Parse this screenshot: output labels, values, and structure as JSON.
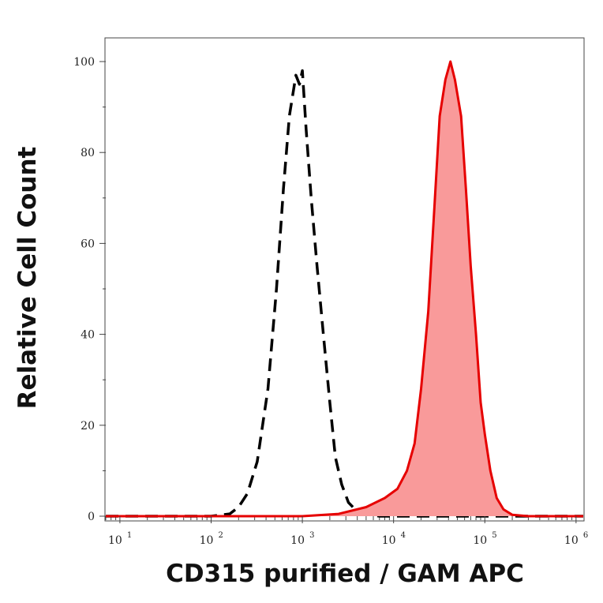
{
  "chart_data": {
    "type": "area",
    "title": "",
    "xlabel": "CD315 purified / GAM APC",
    "ylabel": "Relative Cell Count",
    "x_scale": "log",
    "xlim": [
      7,
      1200000
    ],
    "ylim": [
      0,
      100
    ],
    "grid": false,
    "x_ticks": [
      {
        "base": "10",
        "exp": "1",
        "value": 10
      },
      {
        "base": "10",
        "exp": "2",
        "value": 100
      },
      {
        "base": "10",
        "exp": "3",
        "value": 1000
      },
      {
        "base": "10",
        "exp": "4",
        "value": 10000
      },
      {
        "base": "10",
        "exp": "5",
        "value": 100000
      },
      {
        "base": "10",
        "exp": "6",
        "value": 1000000
      }
    ],
    "y_ticks": [
      {
        "label": "0",
        "value": 0
      },
      {
        "label": "20",
        "value": 20
      },
      {
        "label": "40",
        "value": 40
      },
      {
        "label": "60",
        "value": 60
      },
      {
        "label": "80",
        "value": 80
      },
      {
        "label": "100",
        "value": 100
      }
    ],
    "series": [
      {
        "style": "dashed",
        "color": "#000000",
        "fill": "none",
        "points": [
          [
            7,
            0
          ],
          [
            100,
            0
          ],
          [
            160,
            0.5
          ],
          [
            200,
            2
          ],
          [
            250,
            5
          ],
          [
            320,
            12
          ],
          [
            420,
            28
          ],
          [
            520,
            50
          ],
          [
            620,
            72
          ],
          [
            720,
            88
          ],
          [
            850,
            97
          ],
          [
            930,
            95
          ],
          [
            1000,
            98
          ],
          [
            1100,
            85
          ],
          [
            1250,
            70
          ],
          [
            1450,
            55
          ],
          [
            1700,
            40
          ],
          [
            2000,
            25
          ],
          [
            2300,
            13
          ],
          [
            2700,
            7
          ],
          [
            3200,
            3
          ],
          [
            4000,
            1
          ],
          [
            5500,
            0.3
          ],
          [
            7000,
            0
          ],
          [
            1200000,
            0
          ]
        ]
      },
      {
        "style": "solid",
        "color": "#e60000",
        "fill": "#f99a9a",
        "points": [
          [
            7,
            0
          ],
          [
            200,
            0
          ],
          [
            1000,
            0
          ],
          [
            2500,
            0.5
          ],
          [
            5000,
            2
          ],
          [
            8000,
            4
          ],
          [
            11000,
            6
          ],
          [
            14000,
            10
          ],
          [
            17000,
            16
          ],
          [
            20000,
            28
          ],
          [
            24000,
            45
          ],
          [
            28000,
            68
          ],
          [
            32000,
            88
          ],
          [
            37000,
            96
          ],
          [
            42000,
            100
          ],
          [
            47000,
            96
          ],
          [
            55000,
            88
          ],
          [
            62000,
            72
          ],
          [
            70000,
            55
          ],
          [
            80000,
            40
          ],
          [
            90000,
            25
          ],
          [
            100000,
            18
          ],
          [
            115000,
            10
          ],
          [
            135000,
            4
          ],
          [
            160000,
            1.5
          ],
          [
            200000,
            0.3
          ],
          [
            300000,
            0
          ],
          [
            1200000,
            0
          ]
        ]
      }
    ]
  }
}
